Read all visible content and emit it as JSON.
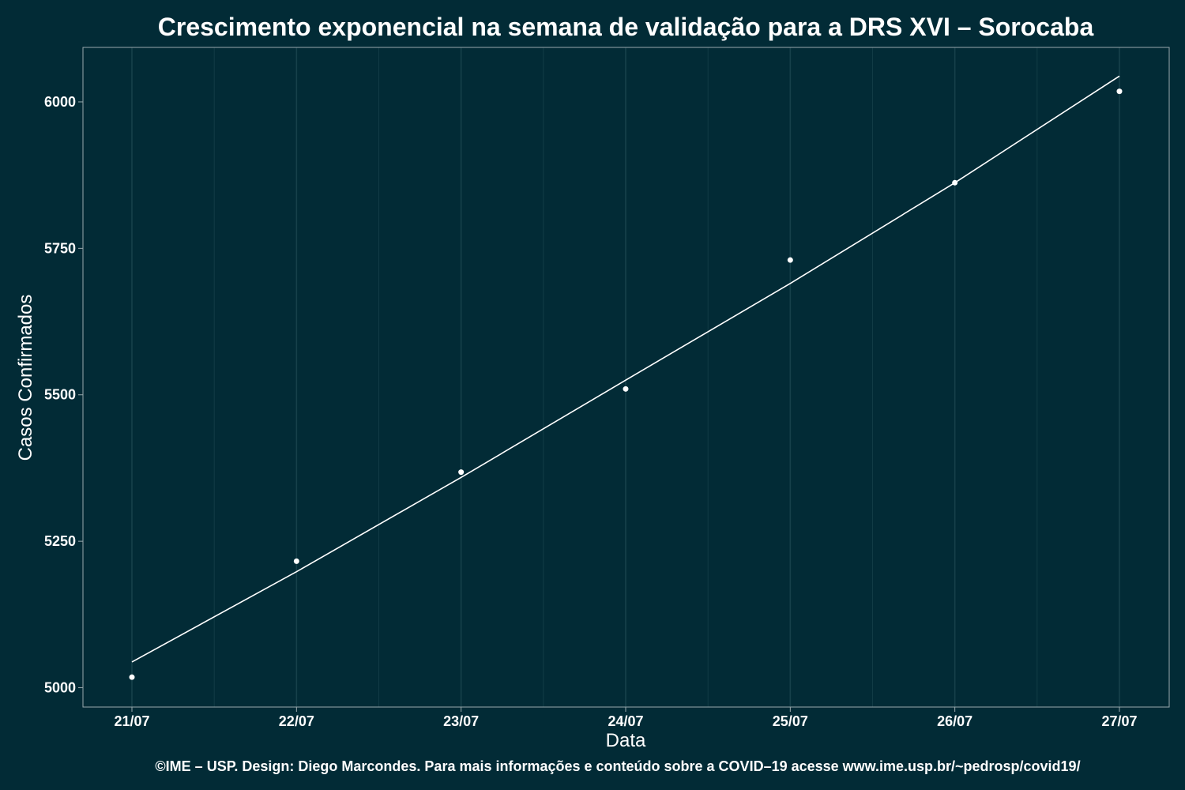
{
  "colors": {
    "background": "#022b36",
    "panel_border": "#9aa9ad",
    "grid": "#16404a",
    "foreground": "#ffffff"
  },
  "chart_data": {
    "type": "scatter",
    "title": "Crescimento exponencial na semana de validação para a DRS XVI – Sorocaba",
    "xlabel": "Data",
    "ylabel": "Casos Confirmados",
    "categories": [
      "21/07",
      "22/07",
      "23/07",
      "24/07",
      "25/07",
      "26/07",
      "27/07"
    ],
    "y_ticks": [
      "5000",
      "5250",
      "5500",
      "5750",
      "6000"
    ],
    "ylim": [
      4967,
      6093
    ],
    "grid": true,
    "legend": "none",
    "series": [
      {
        "kind": "points",
        "values": [
          5018,
          5216,
          5368,
          5510,
          5730,
          5862,
          6018
        ]
      },
      {
        "kind": "fitted-line",
        "values": [
          5044,
          5198,
          5359,
          5525,
          5690,
          5862,
          6044
        ]
      }
    ]
  },
  "caption": "©IME – USP. Design: Diego Marcondes. Para mais informações e conteúdo sobre a COVID–19 acesse www.ime.usp.br/~pedrosp/covid19/"
}
